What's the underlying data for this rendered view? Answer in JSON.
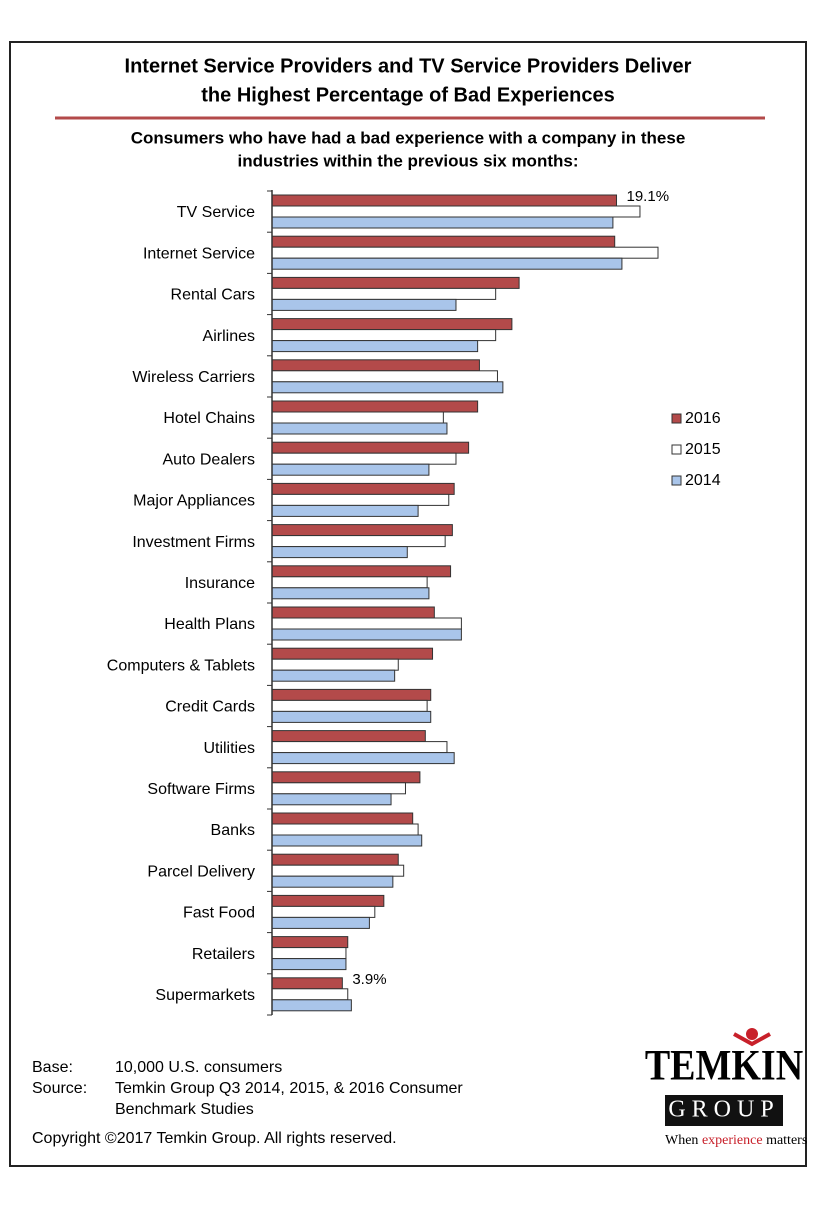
{
  "chart_data": {
    "type": "hbar",
    "title": [
      "Internet Service Providers and TV Service Providers Deliver",
      "the Highest Percentage of Bad Experiences"
    ],
    "subtitle": [
      "Consumers who have had a bad experience with a company in these",
      "industries within the previous six months:"
    ],
    "categories": [
      "TV Service",
      "Internet Service",
      "Rental Cars",
      "Airlines",
      "Wireless Carriers",
      "Hotel Chains",
      "Auto Dealers",
      "Major Appliances",
      "Investment Firms",
      "Insurance",
      "Health Plans",
      "Computers & Tablets",
      "Credit Cards",
      "Utilities",
      "Software Firms",
      "Banks",
      "Parcel Delivery",
      "Fast Food",
      "Retailers",
      "Supermarkets"
    ],
    "series": [
      {
        "name": "2016",
        "color": "#b34a4a",
        "values": [
          19.1,
          19.0,
          13.7,
          13.3,
          11.5,
          11.4,
          10.9,
          10.1,
          10.0,
          9.9,
          9.0,
          8.9,
          8.8,
          8.5,
          8.2,
          7.8,
          7.0,
          6.2,
          4.2,
          3.9
        ],
        "value_labels": [
          "19.1%",
          null,
          null,
          null,
          null,
          null,
          null,
          null,
          null,
          null,
          null,
          null,
          null,
          null,
          null,
          null,
          null,
          null,
          null,
          "3.9%"
        ]
      },
      {
        "name": "2015",
        "color": "#ffffff",
        "values": [
          20.4,
          21.4,
          12.4,
          12.4,
          12.5,
          9.5,
          10.2,
          9.8,
          9.6,
          8.6,
          10.5,
          7.0,
          8.6,
          9.7,
          7.4,
          8.1,
          7.3,
          5.7,
          4.1,
          4.2
        ]
      },
      {
        "name": "2014",
        "color": "#a9c5ea",
        "values": [
          18.9,
          19.4,
          10.2,
          11.4,
          12.8,
          9.7,
          8.7,
          8.1,
          7.5,
          8.7,
          10.5,
          6.8,
          8.8,
          10.1,
          6.6,
          8.3,
          6.7,
          5.4,
          4.1,
          4.4
        ]
      }
    ],
    "notes": {
      "base_label": "Base:",
      "base": "10,000 U.S. consumers",
      "source_label": "Source:",
      "source": [
        "Temkin Group Q3 2014, 2015, & 2016 Consumer",
        "Benchmark Studies"
      ],
      "copyright": "Copyright ©2017 Temkin Group. All rights reserved."
    },
    "logo": {
      "name": "TEMKIN",
      "group": "GROUP",
      "tagline": [
        "When",
        "experience",
        "matters"
      ]
    }
  }
}
